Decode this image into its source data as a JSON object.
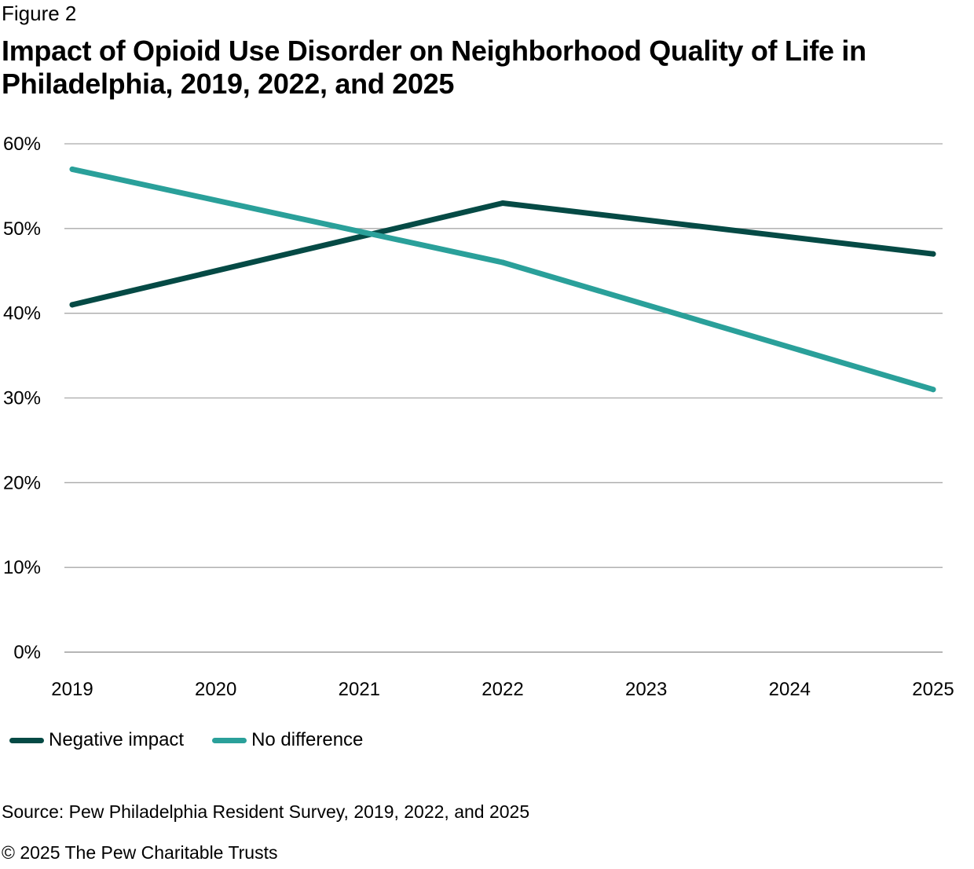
{
  "figure_label": "Figure 2",
  "title": "Impact of Opioid Use Disorder on Neighborhood Quality of Life in Philadelphia, 2019, 2022, and 2025",
  "source": "Source: Pew Philadelphia Resident Survey, 2019, 2022, and 2025",
  "copyright": "© 2025 The Pew Charitable Trusts",
  "chart_data": {
    "type": "line",
    "title": "Impact of Opioid Use Disorder on Neighborhood Quality of Life in Philadelphia, 2019, 2022, and 2025",
    "x": [
      2019,
      2020,
      2021,
      2022,
      2023,
      2024,
      2025
    ],
    "x_tick_labels": [
      "2019",
      "2020",
      "2021",
      "2022",
      "2023",
      "2024",
      "2025"
    ],
    "y_ticks": [
      0,
      10,
      20,
      30,
      40,
      50,
      60
    ],
    "y_tick_labels": [
      "0%",
      "10%",
      "20%",
      "30%",
      "40%",
      "50%",
      "60%"
    ],
    "ylim": [
      0,
      60
    ],
    "xlabel": "",
    "ylabel": "",
    "grid": "horizontal",
    "legend_position": "bottom-left",
    "series": [
      {
        "name": "Negative impact",
        "color": "#054a45",
        "x": [
          2019,
          2022,
          2025
        ],
        "values": [
          41,
          53,
          47
        ]
      },
      {
        "name": "No difference",
        "color": "#2aa09a",
        "x": [
          2019,
          2022,
          2025
        ],
        "values": [
          57,
          46,
          31
        ]
      }
    ]
  }
}
